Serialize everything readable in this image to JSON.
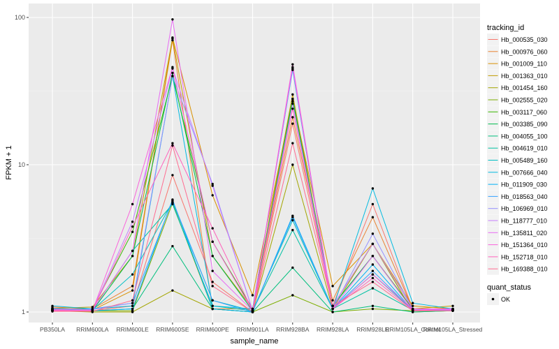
{
  "chart_data": {
    "type": "line",
    "title": "",
    "xlabel": "sample_name",
    "ylabel": "FPKM + 1",
    "y_scale": "log10",
    "ylim": [
      0.9,
      120
    ],
    "y_ticks": [
      1,
      10,
      100
    ],
    "y_tick_labels": [
      "1",
      "10",
      "100"
    ],
    "grid": true,
    "categories": [
      "PB350LA",
      "RRIM600LA",
      "RRIM600LE",
      "RRIM600SE",
      "RRIM600PE",
      "RRIM901LA",
      "RRIM928BA",
      "RRIM928LA",
      "RRIM928LE",
      "RRIM105LA_Control",
      "RRIM105LA_Stressed"
    ],
    "legend_position": "right",
    "legend_title": "tracking_id",
    "series": [
      {
        "name": "Hb_000535_030",
        "color": "#F8766D",
        "values": [
          1.05,
          1.02,
          1.1,
          8.5,
          1.6,
          1.0,
          19,
          1.1,
          5.4,
          1.05,
          1.05
        ]
      },
      {
        "name": "Hb_000976_060",
        "color": "#EA8331",
        "values": [
          1.08,
          1.05,
          1.5,
          70,
          1.05,
          1.05,
          21,
          1.2,
          4.4,
          1.05,
          1.05
        ]
      },
      {
        "name": "Hb_001009_110",
        "color": "#D89000",
        "values": [
          1.03,
          1.03,
          1.4,
          73,
          6.2,
          1.3,
          28,
          1.5,
          2.9,
          1.1,
          1.05
        ]
      },
      {
        "name": "Hb_001363_010",
        "color": "#C09B00",
        "values": [
          1.06,
          1.08,
          2.4,
          72,
          2.4,
          1.05,
          30,
          1.1,
          2.9,
          1.05,
          1.1
        ]
      },
      {
        "name": "Hb_001454_160",
        "color": "#A3A500",
        "values": [
          1.02,
          1.0,
          1.0,
          1.4,
          1.05,
          1.0,
          10,
          1.05,
          2.9,
          1.0,
          1.02
        ]
      },
      {
        "name": "Hb_002555_020",
        "color": "#7CAE00",
        "values": [
          1.04,
          1.02,
          1.02,
          5.5,
          1.05,
          1.0,
          1.3,
          1.0,
          1.05,
          1.02,
          1.02
        ]
      },
      {
        "name": "Hb_003117_060",
        "color": "#39B600",
        "values": [
          1.05,
          1.05,
          3.5,
          40,
          3.0,
          1.05,
          27,
          1.1,
          2.4,
          1.05,
          1.05
        ]
      },
      {
        "name": "Hb_003385_090",
        "color": "#00BB4E",
        "values": [
          1.03,
          1.02,
          2.4,
          42,
          2.4,
          1.02,
          28,
          1.1,
          2.4,
          1.03,
          1.04
        ]
      },
      {
        "name": "Hb_004055_100",
        "color": "#00BF7D",
        "values": [
          1.02,
          1.02,
          1.05,
          2.8,
          1.05,
          1.0,
          2.0,
          1.0,
          1.1,
          1.0,
          1.02
        ]
      },
      {
        "name": "Hb_004619_010",
        "color": "#00C1A3",
        "values": [
          1.05,
          1.03,
          2.6,
          5.4,
          1.1,
          1.02,
          3.6,
          1.05,
          1.45,
          1.03,
          1.03
        ]
      },
      {
        "name": "Hb_005489_160",
        "color": "#00BFC4",
        "values": [
          1.04,
          1.03,
          1.8,
          5.6,
          1.2,
          1.02,
          4.2,
          1.05,
          1.8,
          1.03,
          1.04
        ]
      },
      {
        "name": "Hb_007666_040",
        "color": "#00BAE0",
        "values": [
          1.1,
          1.05,
          1.1,
          40,
          1.1,
          1.05,
          44,
          1.05,
          6.9,
          1.15,
          1.05
        ]
      },
      {
        "name": "Hb_011909_030",
        "color": "#00B0F6",
        "values": [
          1.03,
          1.02,
          1.05,
          5.8,
          1.05,
          1.0,
          4.5,
          1.05,
          2.1,
          1.02,
          1.03
        ]
      },
      {
        "name": "Hb_018563_040",
        "color": "#35A2FF",
        "values": [
          1.02,
          1.05,
          1.15,
          5.7,
          1.2,
          1.0,
          4.4,
          1.05,
          1.9,
          1.03,
          1.03
        ]
      },
      {
        "name": "Hb_106969_010",
        "color": "#9590FF",
        "values": [
          1.06,
          1.04,
          1.15,
          40,
          7.4,
          1.02,
          45,
          1.05,
          3.4,
          1.05,
          1.03
        ]
      },
      {
        "name": "Hb_118777_010",
        "color": "#C77CFF",
        "values": [
          1.03,
          1.03,
          4.1,
          45,
          7.2,
          1.02,
          26,
          1.1,
          2.9,
          1.05,
          1.03
        ]
      },
      {
        "name": "Hb_135811_020",
        "color": "#E76BF3",
        "values": [
          1.04,
          1.03,
          2.6,
          97,
          1.9,
          1.02,
          46,
          1.05,
          2.4,
          1.03,
          1.04
        ]
      },
      {
        "name": "Hb_151364_010",
        "color": "#FA62DB",
        "values": [
          1.03,
          1.02,
          5.4,
          46,
          3.0,
          1.02,
          48,
          1.05,
          1.8,
          1.05,
          1.05
        ]
      },
      {
        "name": "Hb_152718_010",
        "color": "#FF62BC",
        "values": [
          1.02,
          1.02,
          3.8,
          14,
          3.7,
          1.02,
          24,
          1.05,
          1.7,
          1.03,
          1.02
        ]
      },
      {
        "name": "Hb_169388_010",
        "color": "#FF6C91",
        "values": [
          1.01,
          1.01,
          1.2,
          13.5,
          1.5,
          1.0,
          14,
          1.1,
          1.6,
          1.02,
          1.02
        ]
      }
    ],
    "point_legend_title": "quant_status",
    "point_legend_label": "OK",
    "point_color": "#000000"
  }
}
